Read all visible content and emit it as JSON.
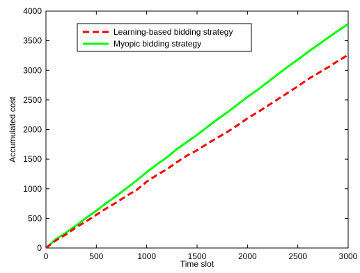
{
  "chart_data": {
    "type": "line",
    "xlabel": "Time slot",
    "ylabel": "Accumulated cost",
    "xlim": [
      0,
      3000
    ],
    "ylim": [
      0,
      4000
    ],
    "xticks": [
      0,
      500,
      1000,
      1500,
      2000,
      2500,
      3000
    ],
    "yticks": [
      0,
      500,
      1000,
      1500,
      2000,
      2500,
      3000,
      3500,
      4000
    ],
    "xtick_labels": [
      "0",
      "500",
      "1000",
      "1500",
      "2000",
      "2500",
      "3000"
    ],
    "ytick_labels": [
      "0",
      "500",
      "1000",
      "1500",
      "2000",
      "2500",
      "3000",
      "3500",
      "4000"
    ],
    "grid": false,
    "legend_position": "top-left",
    "series": [
      {
        "name": "Learning-based bidding strategy",
        "color": "#ff0000",
        "line_style": "dashed",
        "x": [
          0,
          100,
          200,
          300,
          400,
          500,
          600,
          700,
          800,
          900,
          1000,
          1100,
          1200,
          1300,
          1400,
          1500,
          1600,
          1700,
          1800,
          1900,
          2000,
          2100,
          2200,
          2300,
          2400,
          2500,
          2600,
          2700,
          2800,
          2900,
          3000
        ],
        "y": [
          0,
          130,
          230,
          350,
          450,
          560,
          670,
          770,
          880,
          980,
          1120,
          1230,
          1330,
          1450,
          1560,
          1650,
          1760,
          1860,
          1960,
          2070,
          2190,
          2290,
          2400,
          2510,
          2620,
          2730,
          2850,
          2950,
          3050,
          3160,
          3260
        ]
      },
      {
        "name": "Myopic bidding strategy",
        "color": "#00ff00",
        "line_style": "solid",
        "x": [
          0,
          100,
          200,
          300,
          400,
          500,
          600,
          700,
          800,
          900,
          1000,
          1100,
          1200,
          1300,
          1400,
          1500,
          1600,
          1700,
          1800,
          1900,
          2000,
          2100,
          2200,
          2300,
          2400,
          2500,
          2600,
          2700,
          2800,
          2900,
          3000
        ],
        "y": [
          0,
          150,
          260,
          380,
          510,
          630,
          760,
          880,
          1010,
          1140,
          1280,
          1410,
          1530,
          1670,
          1790,
          1910,
          2040,
          2170,
          2290,
          2420,
          2550,
          2670,
          2800,
          2930,
          3060,
          3180,
          3310,
          3430,
          3550,
          3670,
          3780
        ]
      }
    ]
  }
}
